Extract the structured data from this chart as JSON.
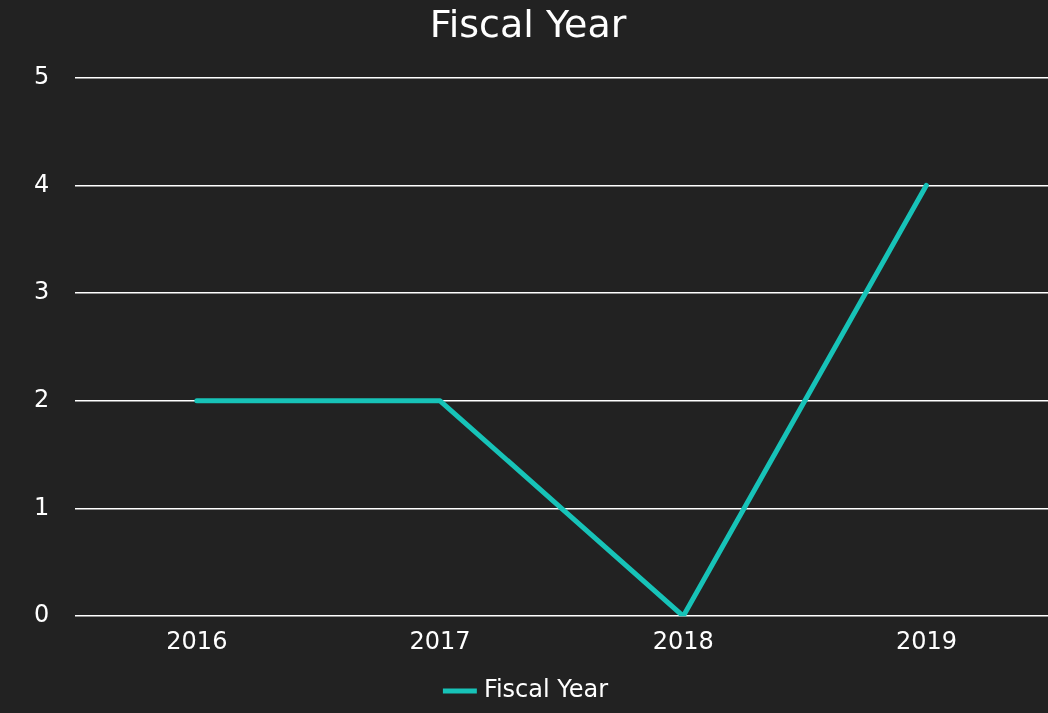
{
  "chart_data": {
    "type": "line",
    "title": "Fiscal Year",
    "categories": [
      "2016",
      "2017",
      "2018",
      "2019"
    ],
    "series": [
      {
        "name": "Fiscal Year",
        "color": "#17c3b8",
        "values": [
          2,
          2,
          0,
          4
        ]
      }
    ],
    "ylim": [
      0,
      5
    ],
    "yticks": [
      0,
      1,
      2,
      3,
      4,
      5
    ],
    "grid": "y",
    "legend": "bottom",
    "marker": "none"
  }
}
